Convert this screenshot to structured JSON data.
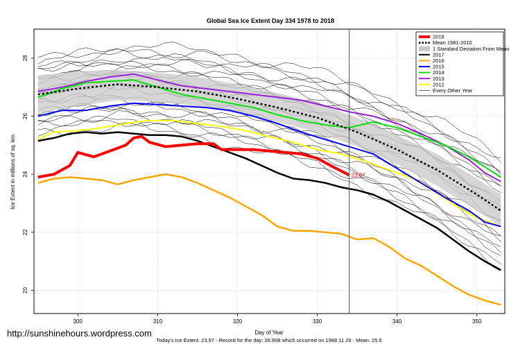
{
  "colors": {
    "y2018": "#ff0000",
    "y2017": "#000000",
    "y2016": "#ffa500",
    "y2015": "#0000ff",
    "y2014": "#00e000",
    "y2013": "#9a1fd6",
    "y2012": "#ffff00",
    "band": "#c8c8c8",
    "mean": "#000000",
    "other": "#000000"
  },
  "footer": {
    "url": "http://sunshinehours.wordpress.com",
    "caption": "Today's Ice Extent: 23.97  - Record for the day: 26.908 which occurred on 1988 11 29  - Mean: 25.5"
  },
  "chart_data": {
    "type": "line",
    "title": "Global Sea Ice Extent Day 334 1978 to 2018",
    "xlabel": "Day of Year",
    "ylabel": "Ice Extent in millions of sq. km.",
    "xlim": [
      294.5,
      353.5
    ],
    "ylim": [
      19.2,
      29.0
    ],
    "xticks": [
      300,
      310,
      320,
      330,
      340,
      350
    ],
    "yticks": [
      20,
      22,
      24,
      26,
      28
    ],
    "grid": true,
    "legend_position": "top-right",
    "current_day": 334,
    "current_value_label": "23.97",
    "legend": [
      {
        "label": "2018",
        "style": "line-thick",
        "color_key": "y2018"
      },
      {
        "label": "Mean 1981-2010",
        "style": "dotted",
        "color_key": "mean"
      },
      {
        "label": "1 Standard Deviation From Mean",
        "style": "box",
        "color_key": "band"
      },
      {
        "label": "2017",
        "style": "line",
        "color_key": "y2017"
      },
      {
        "label": "2016",
        "style": "line",
        "color_key": "y2016"
      },
      {
        "label": "2015",
        "style": "line",
        "color_key": "y2015"
      },
      {
        "label": "2014",
        "style": "line",
        "color_key": "y2014"
      },
      {
        "label": "2013",
        "style": "line",
        "color_key": "y2013"
      },
      {
        "label": "2012",
        "style": "line",
        "color_key": "y2012"
      },
      {
        "label": "Every Other Year",
        "style": "thin",
        "color_key": "other"
      }
    ],
    "mean": {
      "x": [
        295,
        300,
        305,
        310,
        315,
        320,
        325,
        330,
        335,
        340,
        345,
        350,
        353
      ],
      "y": [
        26.75,
        26.95,
        27.1,
        27.0,
        26.85,
        26.6,
        26.3,
        25.95,
        25.45,
        24.85,
        24.15,
        23.3,
        22.75
      ]
    },
    "std_band": {
      "x": [
        295,
        300,
        305,
        310,
        315,
        320,
        325,
        330,
        335,
        340,
        345,
        350,
        353
      ],
      "upper": [
        27.4,
        27.55,
        27.6,
        27.5,
        27.35,
        27.1,
        26.8,
        26.45,
        25.95,
        25.35,
        24.7,
        23.85,
        23.3
      ],
      "lower": [
        26.1,
        26.35,
        26.55,
        26.5,
        26.35,
        26.1,
        25.8,
        25.45,
        24.95,
        24.35,
        23.6,
        22.75,
        22.2
      ]
    },
    "series": [
      {
        "name": "2012",
        "color_key": "y2012",
        "width": 2,
        "x": [
          295,
          297,
          300,
          303,
          306,
          309,
          312,
          315,
          318,
          321,
          324,
          327,
          330,
          333,
          336,
          339,
          342,
          345,
          348,
          350,
          353
        ],
        "y": [
          25.2,
          25.45,
          25.5,
          25.6,
          25.75,
          25.85,
          25.85,
          25.75,
          25.65,
          25.5,
          25.3,
          25.1,
          24.85,
          24.7,
          24.45,
          24.15,
          23.85,
          23.35,
          22.8,
          22.5,
          22.2
        ]
      },
      {
        "name": "2013",
        "color_key": "y2013",
        "width": 2,
        "x": [
          295,
          298,
          301,
          304,
          307,
          310,
          313,
          316,
          319,
          322,
          325,
          328,
          331,
          334,
          337,
          340,
          343,
          346,
          349,
          351,
          353
        ],
        "y": [
          26.85,
          27.0,
          27.2,
          27.35,
          27.45,
          27.25,
          27.05,
          26.95,
          26.85,
          26.75,
          26.65,
          26.55,
          26.35,
          26.15,
          26.0,
          25.75,
          25.4,
          25.0,
          24.5,
          24.05,
          23.75
        ]
      },
      {
        "name": "2014",
        "color_key": "y2014",
        "width": 2,
        "x": [
          295,
          298,
          301,
          304,
          307,
          310,
          313,
          316,
          319,
          322,
          325,
          328,
          331,
          334,
          337,
          340,
          343,
          346,
          349,
          351,
          353
        ],
        "y": [
          26.65,
          26.95,
          27.15,
          27.2,
          27.25,
          27.0,
          26.75,
          26.6,
          26.45,
          26.3,
          26.05,
          25.85,
          25.7,
          25.6,
          25.8,
          25.6,
          25.3,
          25.0,
          24.6,
          24.25,
          23.9
        ]
      },
      {
        "name": "2015",
        "color_key": "y2015",
        "width": 2,
        "x": [
          295,
          298,
          301,
          304,
          307,
          310,
          313,
          316,
          319,
          322,
          325,
          328,
          331,
          334,
          337,
          340,
          343,
          346,
          349,
          351,
          353
        ],
        "y": [
          26.0,
          26.2,
          26.2,
          26.35,
          26.45,
          26.4,
          26.35,
          26.3,
          26.2,
          26.0,
          25.75,
          25.45,
          25.2,
          24.95,
          24.7,
          24.2,
          23.7,
          23.2,
          22.75,
          22.35,
          22.2
        ]
      },
      {
        "name": "2016",
        "color_key": "y2016",
        "width": 2.5,
        "x": [
          295,
          297,
          299,
          301,
          303,
          305,
          307,
          309,
          311,
          313,
          315,
          317,
          319,
          321,
          323,
          325,
          327,
          329,
          331,
          333,
          335,
          337,
          339,
          341,
          343,
          345,
          347,
          349,
          351,
          353
        ],
        "y": [
          23.7,
          23.85,
          23.9,
          23.85,
          23.8,
          23.65,
          23.8,
          23.9,
          24.0,
          23.9,
          23.7,
          23.45,
          23.2,
          22.9,
          22.6,
          22.2,
          22.05,
          22.05,
          22.0,
          21.95,
          21.75,
          21.8,
          21.5,
          21.1,
          20.85,
          20.5,
          20.15,
          19.85,
          19.65,
          19.5
        ]
      },
      {
        "name": "2017",
        "color_key": "y2017",
        "width": 2.5,
        "x": [
          295,
          297,
          299,
          301,
          303,
          305,
          307,
          309,
          311,
          313,
          315,
          317,
          319,
          321,
          323,
          325,
          327,
          329,
          331,
          333,
          335,
          337,
          339,
          341,
          343,
          345,
          347,
          349,
          351,
          353
        ],
        "y": [
          25.15,
          25.25,
          25.4,
          25.45,
          25.4,
          25.45,
          25.4,
          25.35,
          25.35,
          25.3,
          25.15,
          24.95,
          24.75,
          24.55,
          24.3,
          24.05,
          23.85,
          23.8,
          23.7,
          23.55,
          23.45,
          23.3,
          23.05,
          22.75,
          22.45,
          22.15,
          21.75,
          21.35,
          21.0,
          20.7
        ]
      },
      {
        "name": "2018",
        "color_key": "y2018",
        "width": 4,
        "x": [
          295,
          297,
          299,
          300,
          302,
          304,
          306,
          307,
          308,
          309,
          311,
          313,
          315,
          317,
          318,
          320,
          322,
          324,
          326,
          328,
          330,
          332,
          334
        ],
        "y": [
          23.9,
          24.0,
          24.3,
          24.75,
          24.6,
          24.8,
          25.0,
          25.25,
          25.3,
          25.1,
          24.95,
          25.0,
          25.05,
          25.05,
          24.85,
          24.85,
          24.85,
          24.8,
          24.75,
          24.7,
          24.55,
          24.25,
          23.97
        ]
      }
    ]
  }
}
